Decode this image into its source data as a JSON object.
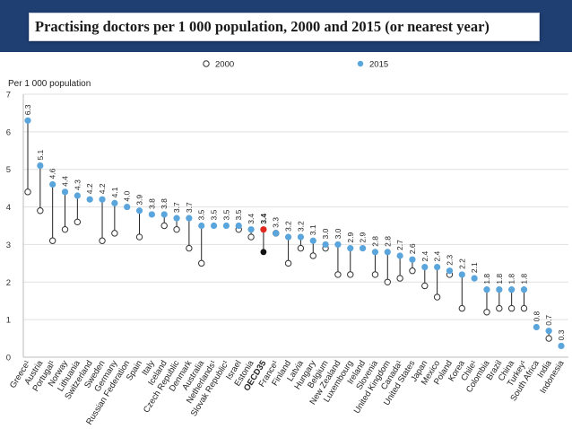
{
  "header": {
    "title": "Practising doctors per 1 000 population, 2000 and 2015 (or nearest year)"
  },
  "chart_data": {
    "type": "scatter",
    "title": "Practising doctors per 1 000 population, 2000 and 2015 (or nearest year)",
    "ylabel": "Per 1 000 population",
    "ylim": [
      0,
      7
    ],
    "yticks": [
      "0",
      "1",
      "2",
      "3",
      "4",
      "5",
      "6",
      "7"
    ],
    "grid": true,
    "legend_position": "top",
    "highlight_category": "OECD35",
    "categories": [
      "Greece",
      "Austria",
      "Portugal",
      "Norway",
      "Lithuania",
      "Switzerland",
      "Sweden",
      "Germany",
      "Russian Federation",
      "Spain",
      "Italy",
      "Iceland",
      "Czech Republic",
      "Denmark",
      "Australia",
      "Netherlands",
      "Slovak Republic",
      "Israel",
      "Estonia",
      "OECD35",
      "France",
      "Finland",
      "Latvia",
      "Hungary",
      "Belgium",
      "New Zealand",
      "Luxembourg",
      "Ireland",
      "Slovenia",
      "United Kingdom",
      "Canada",
      "United States",
      "Japan",
      "Mexico",
      "Poland",
      "Korea",
      "Chile",
      "Colombia",
      "Brazil",
      "China",
      "Turkey",
      "South Africa",
      "India",
      "Indonesia"
    ],
    "category_labels": [
      "Greece¹",
      "Austria",
      "Portugal¹",
      "Norway",
      "Lithuania",
      "Switzerland",
      "Sweden",
      "Germany",
      "Russian Federation",
      "Spain",
      "Italy",
      "Iceland",
      "Czech Republic",
      "Denmark",
      "Australia",
      "Netherlands¹",
      "Slovak Republic¹",
      "Israel",
      "Estonia",
      "OECD35",
      "France¹",
      "Finland",
      "Latvia",
      "Hungary",
      "Belgium",
      "New Zealand",
      "Luxembourg",
      "Ireland",
      "Slovenia",
      "United Kingdom",
      "Canada¹",
      "United States",
      "Japan",
      "Mexico",
      "Poland",
      "Korea",
      "Chile¹",
      "Colombia",
      "Brazil",
      "China",
      "Turkey¹",
      "South Africa",
      "India",
      "Indonesia"
    ],
    "series": [
      {
        "name": "2000",
        "marker": "open-circle",
        "values": [
          4.4,
          3.9,
          3.1,
          3.4,
          3.6,
          null,
          3.1,
          3.3,
          null,
          3.2,
          null,
          3.5,
          3.4,
          2.9,
          2.5,
          null,
          null,
          3.4,
          3.2,
          2.8,
          3.3,
          2.5,
          2.9,
          2.7,
          2.9,
          2.2,
          2.2,
          null,
          2.2,
          2.0,
          2.1,
          2.3,
          1.9,
          1.6,
          2.2,
          1.3,
          null,
          1.2,
          1.3,
          1.3,
          1.3,
          null,
          0.5,
          null
        ]
      },
      {
        "name": "2015",
        "marker": "filled-circle",
        "values": [
          6.3,
          5.1,
          4.6,
          4.4,
          4.3,
          4.2,
          4.2,
          4.1,
          4.0,
          3.9,
          3.8,
          3.8,
          3.7,
          3.7,
          3.5,
          3.5,
          3.5,
          3.5,
          3.4,
          3.4,
          3.3,
          3.2,
          3.2,
          3.1,
          3.0,
          3.0,
          2.9,
          2.9,
          2.8,
          2.8,
          2.7,
          2.6,
          2.4,
          2.4,
          2.3,
          2.2,
          2.1,
          1.8,
          1.8,
          1.8,
          1.8,
          0.8,
          0.7,
          0.3
        ]
      }
    ],
    "value_labels": [
      "6.3",
      "5.1",
      "4.6",
      "4.4",
      "4.3",
      "4.2",
      "4.2",
      "4.1",
      "4.0",
      "3.9",
      "3.8",
      "3.8",
      "3.7",
      "3.7",
      "3.5",
      "3.5",
      "3.5",
      "3.5",
      "3.4",
      "3.4",
      "3.3",
      "3.2",
      "3.2",
      "3.1",
      "3.0",
      "3.0",
      "2.9",
      "2.9",
      "2.8",
      "2.8",
      "2.7",
      "2.6",
      "2.4",
      "2.4",
      "2.3",
      "2.2",
      "2.1",
      "1.8",
      "1.8",
      "1.8",
      "1.8",
      "0.8",
      "0.7",
      "0.3"
    ],
    "colors": {
      "dot_2015": "#5aa5dc",
      "dot_2000_stroke": "#333333",
      "oecd_2015": "#e0281e",
      "oecd_2000": "#111111",
      "connector": "#222222",
      "grid": "#e1e1e1",
      "header_bg": "#1f3f73"
    }
  }
}
